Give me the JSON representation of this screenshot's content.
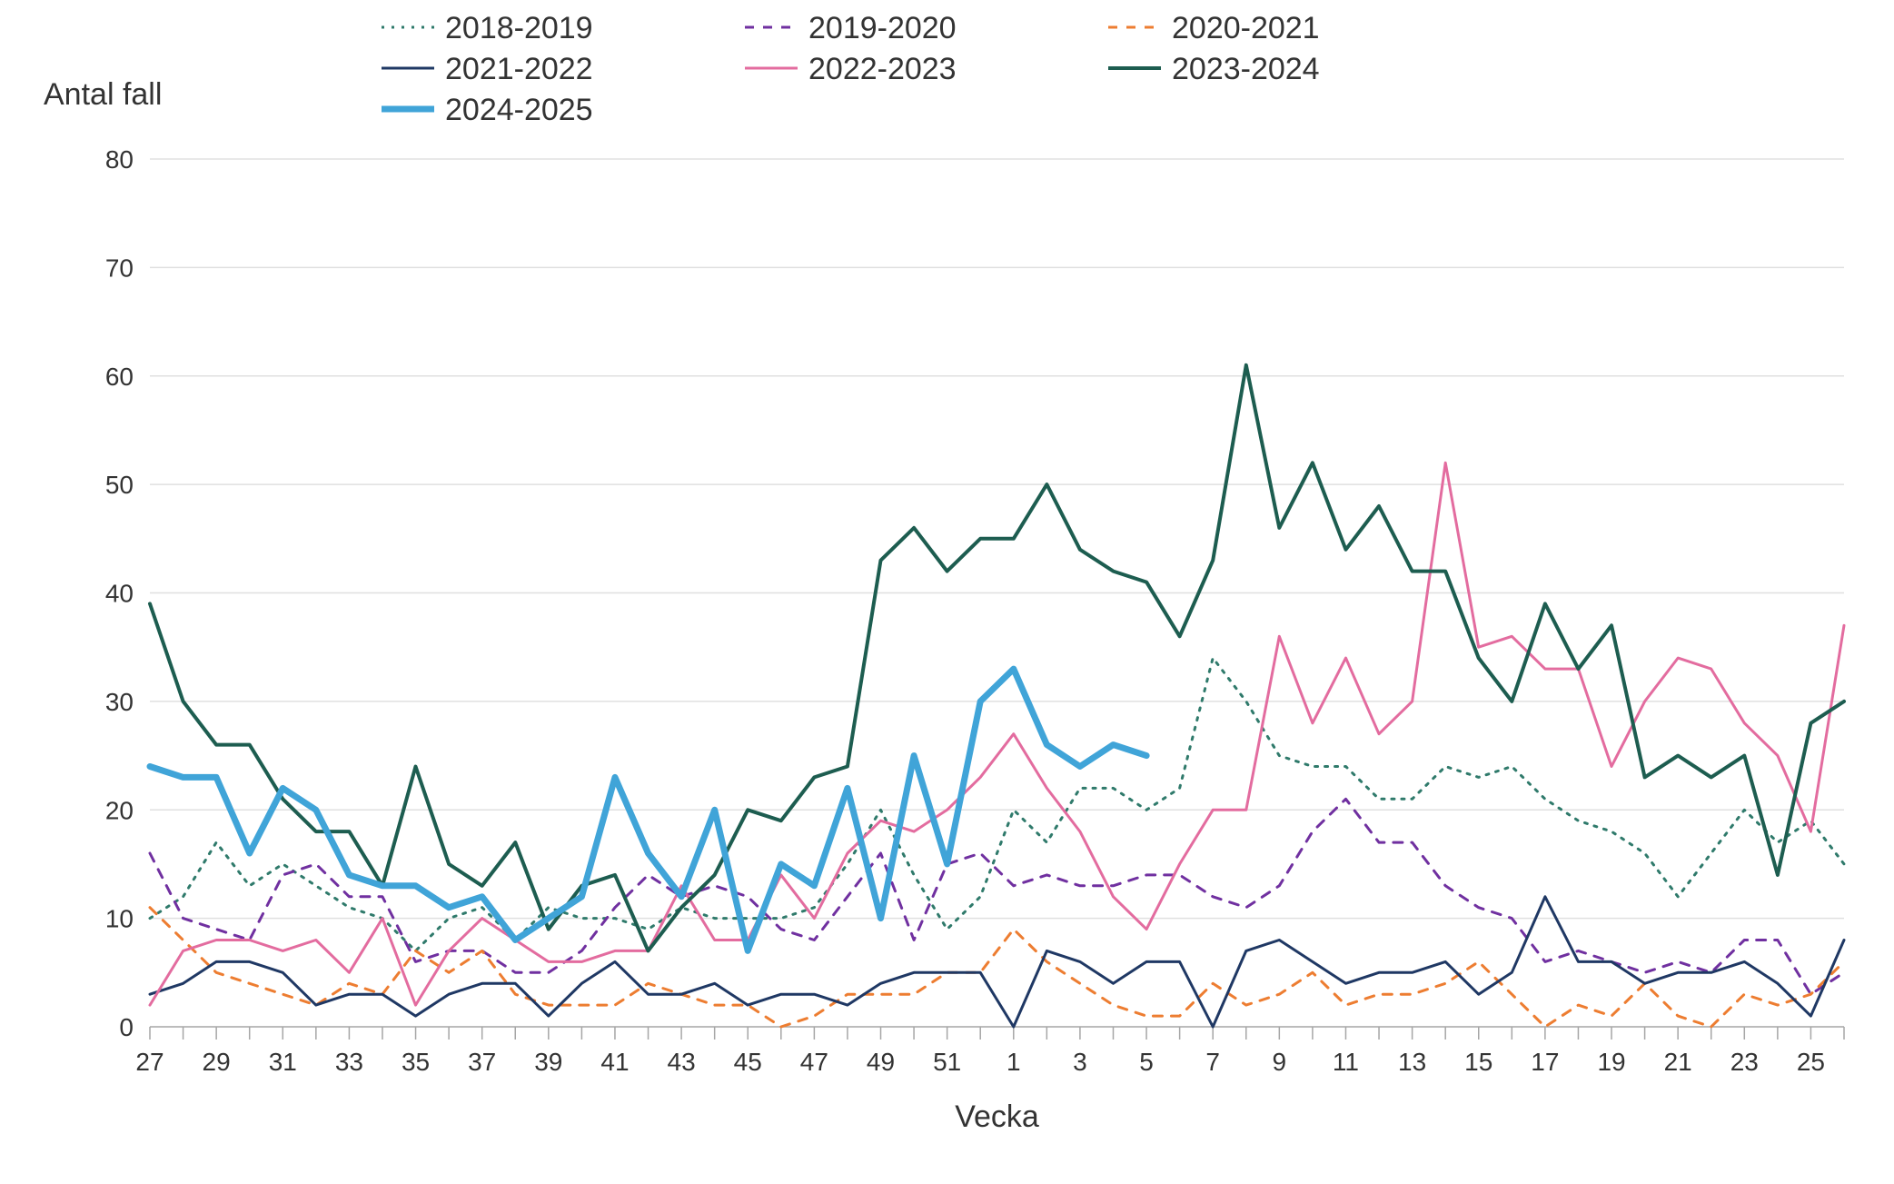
{
  "chart": {
    "type": "line",
    "y_title": "Antal fall",
    "x_title": "Vecka",
    "background_color": "#ffffff",
    "grid_color": "#e0e0e0",
    "axis_color": "#a6a6a6",
    "text_color": "#333333",
    "title_fontsize": 34,
    "axis_fontsize": 28,
    "legend_fontsize": 34,
    "ylim": [
      0,
      80
    ],
    "ytick_step": 10,
    "x_categories": [
      "27",
      "28",
      "29",
      "30",
      "31",
      "32",
      "33",
      "34",
      "35",
      "36",
      "37",
      "38",
      "39",
      "40",
      "41",
      "42",
      "43",
      "44",
      "45",
      "46",
      "47",
      "48",
      "49",
      "50",
      "51",
      "52",
      "1",
      "2",
      "3",
      "4",
      "5",
      "6",
      "7",
      "8",
      "9",
      "10",
      "11",
      "12",
      "13",
      "14",
      "15",
      "16",
      "17",
      "18",
      "19",
      "20",
      "21",
      "22",
      "23",
      "24",
      "25",
      "26"
    ],
    "x_tick_labels": [
      "27",
      "29",
      "31",
      "33",
      "35",
      "37",
      "39",
      "41",
      "43",
      "45",
      "47",
      "49",
      "51",
      "1",
      "3",
      "5",
      "7",
      "9",
      "11",
      "13",
      "15",
      "17",
      "19",
      "21",
      "23",
      "25"
    ],
    "series": [
      {
        "name": "2018-2019",
        "color": "#2f7a6b",
        "line_width": 3,
        "dash": "3,8",
        "values": [
          10,
          12,
          17,
          13,
          15,
          13,
          11,
          10,
          7,
          10,
          11,
          8,
          11,
          10,
          10,
          9,
          11,
          10,
          10,
          10,
          11,
          15,
          20,
          14,
          9,
          12,
          20,
          17,
          22,
          22,
          20,
          22,
          34,
          30,
          25,
          24,
          24,
          21,
          21,
          24,
          23,
          24,
          21,
          19,
          18,
          16,
          12,
          16,
          20,
          17,
          19,
          15
        ]
      },
      {
        "name": "2019-2020",
        "color": "#7030a0",
        "line_width": 3,
        "dash": "10,10",
        "values": [
          16,
          10,
          9,
          8,
          14,
          15,
          12,
          12,
          6,
          7,
          7,
          5,
          5,
          7,
          11,
          14,
          12,
          13,
          12,
          9,
          8,
          12,
          16,
          8,
          15,
          16,
          13,
          14,
          13,
          13,
          14,
          14,
          12,
          11,
          13,
          18,
          21,
          17,
          17,
          13,
          11,
          10,
          6,
          7,
          6,
          5,
          6,
          5,
          8,
          8,
          3,
          5
        ]
      },
      {
        "name": "2020-2021",
        "color": "#ed7d31",
        "line_width": 3,
        "dash": "10,10",
        "values": [
          11,
          8,
          5,
          4,
          3,
          2,
          4,
          3,
          7,
          5,
          7,
          3,
          2,
          2,
          2,
          4,
          3,
          2,
          2,
          0,
          1,
          3,
          3,
          3,
          5,
          5,
          9,
          6,
          4,
          2,
          1,
          1,
          4,
          2,
          3,
          5,
          2,
          3,
          3,
          4,
          6,
          3,
          0,
          2,
          1,
          4,
          1,
          0,
          3,
          2,
          3,
          6
        ]
      },
      {
        "name": "2021-2022",
        "color": "#1f3864",
        "line_width": 3,
        "dash": "none",
        "values": [
          3,
          4,
          6,
          6,
          5,
          2,
          3,
          3,
          1,
          3,
          4,
          4,
          1,
          4,
          6,
          3,
          3,
          4,
          2,
          3,
          3,
          2,
          4,
          5,
          5,
          5,
          0,
          7,
          6,
          4,
          6,
          6,
          0,
          7,
          8,
          6,
          4,
          5,
          5,
          6,
          3,
          5,
          12,
          6,
          6,
          4,
          5,
          5,
          6,
          4,
          1,
          8
        ]
      },
      {
        "name": "2022-2023",
        "color": "#e36c9f",
        "line_width": 3,
        "dash": "none",
        "values": [
          2,
          7,
          8,
          8,
          7,
          8,
          5,
          10,
          2,
          7,
          10,
          8,
          6,
          6,
          7,
          7,
          13,
          8,
          8,
          14,
          10,
          16,
          19,
          18,
          20,
          23,
          27,
          22,
          18,
          12,
          9,
          15,
          20,
          20,
          36,
          28,
          34,
          27,
          30,
          52,
          35,
          36,
          33,
          33,
          24,
          30,
          34,
          33,
          28,
          25,
          18,
          37
        ]
      },
      {
        "name": "2023-2024",
        "color": "#1d5d50",
        "line_width": 4,
        "dash": "none",
        "values": [
          39,
          30,
          26,
          26,
          21,
          18,
          18,
          13,
          24,
          15,
          13,
          17,
          9,
          13,
          14,
          7,
          11,
          14,
          20,
          19,
          23,
          24,
          43,
          46,
          42,
          45,
          45,
          50,
          44,
          42,
          41,
          36,
          43,
          61,
          46,
          52,
          44,
          48,
          42,
          42,
          34,
          30,
          39,
          33,
          37,
          23,
          25,
          23,
          25,
          14,
          28,
          30
        ]
      },
      {
        "name": "2024-2025",
        "color": "#40a4d8",
        "line_width": 7,
        "dash": "none",
        "values": [
          24,
          23,
          23,
          16,
          22,
          20,
          14,
          13,
          13,
          11,
          12,
          8,
          10,
          12,
          23,
          16,
          12,
          20,
          7,
          15,
          13,
          22,
          10,
          25,
          15,
          30,
          33,
          26,
          24,
          26,
          25
        ]
      }
    ],
    "legend_layout": {
      "cols": 3,
      "items_per_row": [
        [
          "2018-2019",
          "2019-2020",
          "2020-2021"
        ],
        [
          "2021-2022",
          "2022-2023",
          "2023-2024"
        ],
        [
          "2024-2025"
        ]
      ]
    }
  }
}
